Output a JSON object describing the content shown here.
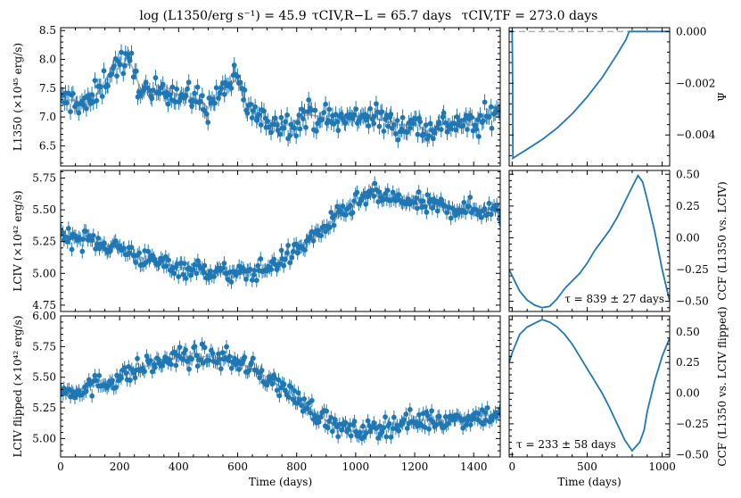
{
  "title": {
    "luminosity": "log (L1350/erg s⁻¹) = 45.9",
    "tau_rl": "τCIV,R−L = 65.7 days",
    "tau_tf": "τCIV,TF = 273.0 days"
  },
  "colors": {
    "data": "#1f77b4",
    "model": "#b8b8b8",
    "zero_line": "#b0b0b0",
    "axis": "#000000"
  },
  "chart_data": [
    {
      "id": "continuum_lc",
      "type": "scatter",
      "ylabel": "L1350 (×10⁴⁵ erg/s)",
      "xlim": [
        0,
        1490
      ],
      "ylim": [
        6.15,
        8.55
      ],
      "xticks": [
        0,
        200,
        400,
        600,
        800,
        1000,
        1200,
        1400
      ],
      "yticks": [
        6.5,
        7.0,
        7.5,
        8.0,
        8.5
      ],
      "ytick_labels": [
        "6.5",
        "7.0",
        "7.5",
        "8.0",
        "8.5"
      ],
      "n_points": 300,
      "errorbar": 0.14,
      "noise": 0.17,
      "model_curve": {
        "x": [
          0,
          40,
          90,
          130,
          170,
          200,
          240,
          270,
          310,
          350,
          390,
          430,
          470,
          500,
          530,
          560,
          600,
          630,
          660,
          690,
          720,
          760,
          800,
          840,
          880,
          920,
          960,
          1000,
          1040,
          1080,
          1120,
          1160,
          1200,
          1240,
          1280,
          1320,
          1360,
          1400,
          1440,
          1490
        ],
        "y": [
          7.25,
          7.3,
          7.2,
          7.45,
          7.8,
          7.95,
          7.9,
          7.5,
          7.35,
          7.55,
          7.4,
          7.35,
          7.3,
          7.15,
          7.35,
          7.55,
          7.65,
          7.2,
          7.05,
          6.9,
          6.95,
          6.85,
          6.95,
          7.05,
          7.0,
          6.95,
          6.95,
          7.0,
          7.05,
          6.95,
          6.9,
          6.85,
          6.9,
          6.75,
          6.85,
          6.9,
          6.9,
          6.85,
          6.95,
          7.2
        ]
      }
    },
    {
      "id": "transfer_function",
      "type": "line",
      "ylabel": "Ψ",
      "xlim": [
        -20,
        1050
      ],
      "ylim": [
        -0.0052,
        0.00015
      ],
      "yticks": [
        0.0,
        -0.002,
        -0.004
      ],
      "ytick_labels": [
        "0.000",
        "−0.002",
        "−0.004"
      ],
      "x": [
        -20,
        0,
        3,
        5,
        50,
        100,
        200,
        300,
        400,
        500,
        600,
        700,
        760,
        780,
        1050
      ],
      "y": [
        0,
        0,
        -0.002,
        -0.0049,
        -0.00473,
        -0.00455,
        -0.00418,
        -0.00373,
        -0.00318,
        -0.00253,
        -0.00178,
        -0.00088,
        -0.0003,
        0,
        0
      ],
      "zero_line_dashed": true
    },
    {
      "id": "civ_lc",
      "type": "scatter",
      "ylabel": "LCIV (×10⁴² erg/s)",
      "xlim": [
        0,
        1490
      ],
      "ylim": [
        4.7,
        5.81
      ],
      "yticks": [
        4.75,
        5.0,
        5.25,
        5.5,
        5.75
      ],
      "ytick_labels": [
        "4.75",
        "5.00",
        "5.25",
        "5.50",
        "5.75"
      ],
      "n_points": 300,
      "errorbar": 0.055,
      "noise": 0.055,
      "model_curve": {
        "x": [
          0,
          100,
          200,
          300,
          400,
          500,
          600,
          700,
          800,
          900,
          1000,
          1050,
          1100,
          1200,
          1300,
          1400,
          1490
        ],
        "y": [
          5.3,
          5.26,
          5.2,
          5.1,
          5.05,
          5.02,
          4.99,
          5.04,
          5.18,
          5.37,
          5.55,
          5.62,
          5.6,
          5.55,
          5.52,
          5.5,
          5.5
        ]
      }
    },
    {
      "id": "ccf_civ",
      "type": "line",
      "ylabel": "CCF (L1350 vs. LCIV)",
      "xlim": [
        -20,
        1050
      ],
      "ylim": [
        -0.58,
        0.53
      ],
      "yticks": [
        0.5,
        0.25,
        0.0,
        -0.25,
        -0.5
      ],
      "ytick_labels": [
        "0.50",
        "0.25",
        "0.00",
        "−0.25",
        "−0.50"
      ],
      "x": [
        -20,
        0,
        50,
        100,
        150,
        200,
        250,
        300,
        350,
        400,
        450,
        500,
        550,
        600,
        650,
        700,
        750,
        800,
        839,
        870,
        900,
        950,
        1000,
        1050
      ],
      "y": [
        -0.25,
        -0.3,
        -0.42,
        -0.49,
        -0.53,
        -0.55,
        -0.54,
        -0.48,
        -0.4,
        -0.34,
        -0.28,
        -0.2,
        -0.1,
        -0.02,
        0.06,
        0.16,
        0.28,
        0.4,
        0.49,
        0.44,
        0.3,
        0.05,
        -0.25,
        -0.5
      ],
      "annotation": "τ = 839 ± 27 days"
    },
    {
      "id": "civ_flipped_lc",
      "type": "scatter",
      "ylabel": "LCIV flipped (×10⁴² erg/s)",
      "xlabel": "Time (days)",
      "xlim": [
        0,
        1490
      ],
      "ylim": [
        4.85,
        6.0
      ],
      "yticks": [
        5.0,
        5.25,
        5.5,
        5.75,
        6.0
      ],
      "ytick_labels": [
        "5.00",
        "5.25",
        "5.50",
        "5.75",
        "6.00"
      ],
      "xtick_labels": [
        "0",
        "200",
        "400",
        "600",
        "800",
        "1000",
        "1200",
        "1400"
      ],
      "n_points": 300,
      "errorbar": 0.055,
      "noise": 0.06,
      "model_curve": {
        "x": [
          0,
          100,
          200,
          300,
          400,
          500,
          600,
          700,
          800,
          900,
          950,
          1000,
          1100,
          1200,
          1300,
          1400,
          1490
        ],
        "y": [
          5.38,
          5.42,
          5.5,
          5.6,
          5.66,
          5.67,
          5.63,
          5.5,
          5.33,
          5.15,
          5.08,
          5.05,
          5.1,
          5.15,
          5.15,
          5.18,
          5.2
        ]
      }
    },
    {
      "id": "ccf_flipped",
      "type": "line",
      "ylabel": "CCF (L1350 vs. LCIV flipped)",
      "xlabel": "Time (days)",
      "xlim": [
        -20,
        1050
      ],
      "ylim": [
        -0.52,
        0.63
      ],
      "yticks": [
        0.5,
        0.25,
        0.0,
        -0.25,
        -0.5
      ],
      "ytick_labels": [
        "0.50",
        "0.25",
        "0.00",
        "−0.25",
        "−0.50"
      ],
      "xticks": [
        0,
        500,
        1000
      ],
      "xtick_labels": [
        "0",
        "500",
        "1000"
      ],
      "x": [
        -20,
        0,
        50,
        100,
        150,
        200,
        250,
        300,
        350,
        400,
        450,
        500,
        550,
        600,
        650,
        700,
        750,
        800,
        850,
        880,
        900,
        950,
        1000,
        1050
      ],
      "y": [
        0.25,
        0.33,
        0.48,
        0.54,
        0.57,
        0.6,
        0.58,
        0.54,
        0.48,
        0.4,
        0.3,
        0.2,
        0.1,
        0.0,
        -0.12,
        -0.25,
        -0.38,
        -0.47,
        -0.4,
        -0.3,
        -0.15,
        0.1,
        0.3,
        0.45
      ],
      "annotation": "τ = 233 ± 58 days"
    }
  ]
}
